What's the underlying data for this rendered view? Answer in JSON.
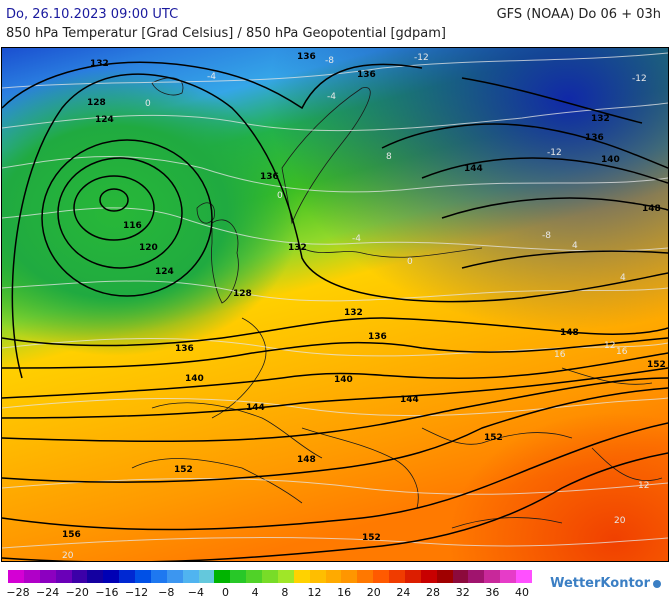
{
  "header": {
    "datetime": "Do, 26.10.2023 09:00 UTC",
    "model_run": "GFS (NOAA) Do 06 + 03h",
    "subtitle": "850 hPa Temperatur [Grad Celsius] / 850 hPa Geopotential [gdpam]"
  },
  "map": {
    "geopotential_labels": [
      "132",
      "128",
      "124",
      "116",
      "120",
      "124",
      "128",
      "132",
      "136",
      "140",
      "144",
      "148",
      "152",
      "156",
      "136",
      "136",
      "132",
      "136",
      "140",
      "144",
      "148",
      "152",
      "132",
      "136",
      "140",
      "144",
      "148",
      "152",
      "152",
      "136"
    ],
    "temperature_labels": [
      "-12",
      "-12",
      "-8",
      "-8",
      "-4",
      "-4",
      "0",
      "0",
      "4",
      "4",
      "8",
      "-12",
      "12",
      "16",
      "20",
      "20",
      "16",
      "12",
      "-4",
      "0"
    ]
  },
  "legend": {
    "ticks": [
      "−28",
      "−24",
      "−20",
      "−16",
      "−12",
      "−8",
      "−4",
      "0",
      "4",
      "8",
      "12",
      "16",
      "20",
      "24",
      "28",
      "32",
      "36",
      "40"
    ],
    "colors": [
      "#d400d4",
      "#b000c8",
      "#8c00c0",
      "#6a00b8",
      "#3c00a8",
      "#1400a0",
      "#0000b4",
      "#0028d2",
      "#0050e6",
      "#1e78f0",
      "#3c96f0",
      "#50b4f0",
      "#64c8dc",
      "#00b400",
      "#28c828",
      "#50d228",
      "#78dc28",
      "#a0e628",
      "#ffd200",
      "#ffbe00",
      "#ffaa00",
      "#ff9600",
      "#ff7800",
      "#ff5a00",
      "#f03c00",
      "#dc1e00",
      "#c80000",
      "#a00000",
      "#8c0a3c",
      "#a0146e",
      "#c8289a",
      "#e63cc8",
      "#ff50ff"
    ],
    "brand": "WetterKontor"
  }
}
